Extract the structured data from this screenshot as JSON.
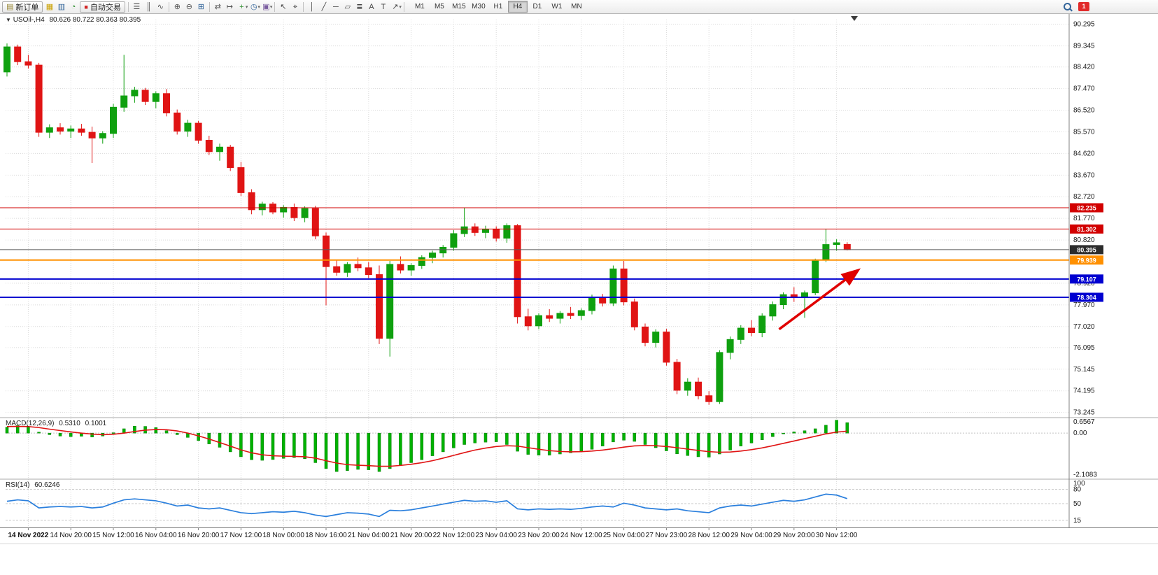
{
  "toolbar": {
    "new_order_label": "新订单",
    "new_order_icon": "▤",
    "autotrading_label": "自动交易",
    "autotrading_icon": "■",
    "notification_badge": "1",
    "icons_a": [
      {
        "name": "market-watch-icon",
        "glyph": "▦",
        "color": "#c9a100"
      },
      {
        "name": "data-window-icon",
        "glyph": "▥",
        "color": "#33659a"
      },
      {
        "name": "navigator-icon",
        "glyph": "◔",
        "color": "#2f8f2f"
      }
    ],
    "icons_b": [
      {
        "sep": true
      },
      {
        "name": "bar-chart-icon",
        "glyph": "☰",
        "color": "#555555"
      },
      {
        "name": "candlestick-chart-icon",
        "glyph": "║",
        "color": "#555555"
      },
      {
        "name": "line-chart-icon",
        "glyph": "∿",
        "color": "#555555"
      },
      {
        "sep": true
      },
      {
        "name": "zoom-in-icon",
        "glyph": "⊕",
        "color": "#555555"
      },
      {
        "name": "zoom-out-icon",
        "glyph": "⊖",
        "color": "#555555"
      },
      {
        "name": "tile-windows-icon",
        "glyph": "⊞",
        "color": "#33659a"
      },
      {
        "sep": true
      },
      {
        "name": "auto-scroll-icon",
        "glyph": "⇄",
        "color": "#555555"
      },
      {
        "name": "chart-shift-icon",
        "glyph": "↦",
        "color": "#555555"
      },
      {
        "name": "new-chart-icon",
        "glyph": "+",
        "color": "#2f8f2f",
        "caret": true
      },
      {
        "name": "periodicity-icon",
        "glyph": "◷",
        "color": "#33659a",
        "caret": true
      },
      {
        "name": "templates-icon",
        "glyph": "▣",
        "color": "#7a5ca0",
        "caret": true
      },
      {
        "sep": true
      },
      {
        "name": "cursor-icon",
        "glyph": "↖",
        "color": "#444444"
      },
      {
        "name": "crosshair-icon",
        "glyph": "⌖",
        "color": "#444444"
      },
      {
        "sep": true
      },
      {
        "name": "vertical-line-icon",
        "glyph": "│",
        "color": "#444444"
      },
      {
        "name": "trendline-icon",
        "glyph": "╱",
        "color": "#444444"
      },
      {
        "name": "horizontal-line-icon",
        "glyph": "─",
        "color": "#444444"
      },
      {
        "name": "equidistant-channel-icon",
        "glyph": "▱",
        "color": "#444444"
      },
      {
        "name": "fibonacci-icon",
        "glyph": "≣",
        "color": "#444444"
      },
      {
        "name": "text-icon",
        "glyph": "A",
        "color": "#444444"
      },
      {
        "name": "text-label-icon",
        "glyph": "T",
        "color": "#444444"
      },
      {
        "name": "arrows-icon",
        "glyph": "↗",
        "color": "#444444",
        "caret": true
      },
      {
        "sep": true
      }
    ],
    "timeframes": {
      "items": [
        "M1",
        "M5",
        "M15",
        "M30",
        "H1",
        "H4",
        "D1",
        "W1",
        "MN"
      ],
      "active": "H4"
    }
  },
  "chart": {
    "symbol_header_icon": "▼",
    "symbol_label": "USOil-,H4",
    "ohlc_label": "80.626 80.722 80.363 80.395",
    "price_axis": [
      "90.295",
      "89.345",
      "88.420",
      "87.470",
      "86.520",
      "85.570",
      "84.620",
      "83.670",
      "82.720",
      "81.770",
      "80.820",
      "78.920",
      "77.970",
      "77.020",
      "76.095",
      "75.145",
      "74.195",
      "73.245"
    ],
    "price_range": {
      "max": 90.5,
      "min": 73.05
    },
    "levels": [
      {
        "price": 82.235,
        "label": "82.235",
        "color": "#d20000",
        "badge_bg": "#d20000",
        "lw": 1
      },
      {
        "price": 81.302,
        "label": "81.302",
        "color": "#d20000",
        "badge_bg": "#d20000",
        "lw": 1
      },
      {
        "price": 80.395,
        "label": "80.395",
        "color": "#5a5a5a",
        "badge_bg": "#2b2b2b",
        "lw": 1
      },
      {
        "price": 79.939,
        "label": "79.939",
        "color": "#ff9000",
        "badge_bg": "#ff9000",
        "lw": 2
      },
      {
        "price": 79.107,
        "label": "79.107",
        "color": "#0000d0",
        "badge_bg": "#0000d0",
        "lw": 2
      },
      {
        "price": 78.304,
        "label": "78.304",
        "color": "#0000d0",
        "badge_bg": "#0000d0",
        "lw": 2
      }
    ],
    "colors": {
      "up": "#0fa00f",
      "down": "#e01414",
      "macd_hist": "#00b200",
      "macd_signal": "#e01414",
      "rsi": "#2a7fdd",
      "grid": "#dadada",
      "arrow": "#e00000"
    }
  },
  "macd": {
    "title": "MACD(12,26,9)",
    "value_main": "0.5310",
    "value_signal": "0.1001",
    "axis": [
      "0.6567",
      "0.00",
      "-2.1083"
    ],
    "range": {
      "max": 0.75,
      "min": -2.3
    }
  },
  "rsi": {
    "title": "RSI(14)",
    "value": "60.6246",
    "axis": [
      "100",
      "80",
      "50",
      "15"
    ],
    "levels": [
      80,
      50,
      15
    ],
    "range": {
      "max": 100,
      "min": 0
    }
  },
  "chart_data": {
    "type": "candlestick",
    "title": "USOil-,H4",
    "ohlc_current": "80.626 80.722 80.363 80.395",
    "ylim": [
      73.245,
      90.295
    ],
    "x_labels": [
      "14 Nov 2022",
      "14 Nov 20:00",
      "15 Nov 12:00",
      "16 Nov 04:00",
      "16 Nov 20:00",
      "17 Nov 12:00",
      "18 Nov 00:00",
      "18 Nov 16:00",
      "21 Nov 04:00",
      "21 Nov 20:00",
      "22 Nov 12:00",
      "23 Nov 04:00",
      "23 Nov 20:00",
      "24 Nov 12:00",
      "25 Nov 04:00",
      "27 Nov 23:00",
      "28 Nov 12:00",
      "29 Nov 04:00",
      "29 Nov 20:00",
      "30 Nov 12:00"
    ],
    "x_label_indices": [
      2,
      6,
      10,
      14,
      18,
      22,
      26,
      30,
      34,
      38,
      42,
      46,
      50,
      54,
      58,
      62,
      66,
      70,
      74,
      78
    ],
    "ohlc": [
      [
        88.2,
        89.45,
        88.0,
        89.3
      ],
      [
        89.3,
        89.4,
        88.5,
        88.65
      ],
      [
        88.65,
        88.95,
        88.35,
        88.5
      ],
      [
        88.5,
        88.6,
        85.35,
        85.55
      ],
      [
        85.55,
        85.9,
        85.3,
        85.75
      ],
      [
        85.75,
        85.95,
        85.45,
        85.6
      ],
      [
        85.6,
        85.85,
        85.3,
        85.7
      ],
      [
        85.7,
        85.92,
        85.4,
        85.55
      ],
      [
        85.55,
        85.8,
        84.2,
        85.3
      ],
      [
        85.3,
        85.6,
        85.05,
        85.5
      ],
      [
        85.5,
        86.8,
        85.3,
        86.65
      ],
      [
        86.65,
        88.95,
        86.45,
        87.15
      ],
      [
        87.15,
        87.55,
        86.85,
        87.4
      ],
      [
        87.4,
        87.5,
        86.75,
        86.9
      ],
      [
        86.9,
        87.35,
        86.6,
        87.25
      ],
      [
        87.25,
        87.45,
        86.25,
        86.4
      ],
      [
        86.4,
        86.55,
        85.45,
        85.6
      ],
      [
        85.6,
        86.1,
        85.35,
        85.95
      ],
      [
        85.95,
        86.05,
        85.05,
        85.2
      ],
      [
        85.2,
        85.4,
        84.55,
        84.7
      ],
      [
        84.7,
        85.05,
        84.3,
        84.9
      ],
      [
        84.9,
        85.0,
        83.85,
        84.0
      ],
      [
        84.0,
        84.25,
        82.75,
        82.9
      ],
      [
        82.9,
        83.05,
        81.95,
        82.15
      ],
      [
        82.15,
        82.5,
        81.9,
        82.4
      ],
      [
        82.4,
        82.48,
        81.95,
        82.05
      ],
      [
        82.05,
        82.35,
        81.8,
        82.25
      ],
      [
        82.25,
        82.42,
        81.65,
        81.8
      ],
      [
        81.8,
        82.3,
        81.6,
        82.2
      ],
      [
        82.2,
        82.32,
        80.85,
        81.0
      ],
      [
        81.0,
        81.15,
        77.95,
        79.65
      ],
      [
        79.65,
        79.95,
        79.25,
        79.4
      ],
      [
        79.4,
        79.85,
        79.2,
        79.75
      ],
      [
        79.75,
        80.05,
        79.45,
        79.6
      ],
      [
        79.6,
        79.85,
        79.15,
        79.3
      ],
      [
        79.3,
        79.7,
        76.25,
        76.5
      ],
      [
        76.5,
        79.9,
        75.7,
        79.75
      ],
      [
        79.75,
        80.1,
        79.35,
        79.5
      ],
      [
        79.5,
        79.8,
        79.25,
        79.7
      ],
      [
        79.7,
        80.15,
        79.55,
        80.05
      ],
      [
        80.05,
        80.35,
        79.8,
        80.25
      ],
      [
        80.25,
        80.6,
        80.05,
        80.5
      ],
      [
        80.5,
        81.25,
        80.35,
        81.1
      ],
      [
        81.1,
        82.25,
        80.95,
        81.4
      ],
      [
        81.4,
        81.55,
        81.0,
        81.15
      ],
      [
        81.15,
        81.45,
        80.9,
        81.3
      ],
      [
        81.3,
        81.42,
        80.75,
        80.9
      ],
      [
        80.9,
        81.55,
        80.7,
        81.45
      ],
      [
        81.45,
        81.52,
        77.15,
        77.45
      ],
      [
        77.45,
        77.8,
        76.85,
        77.05
      ],
      [
        77.05,
        77.6,
        76.9,
        77.5
      ],
      [
        77.5,
        77.78,
        77.22,
        77.38
      ],
      [
        77.38,
        77.7,
        77.15,
        77.6
      ],
      [
        77.6,
        77.88,
        77.35,
        77.5
      ],
      [
        77.5,
        77.82,
        77.3,
        77.72
      ],
      [
        77.72,
        78.42,
        77.55,
        78.3
      ],
      [
        78.3,
        78.45,
        77.9,
        78.05
      ],
      [
        78.05,
        79.7,
        77.92,
        79.55
      ],
      [
        79.55,
        79.9,
        77.95,
        78.1
      ],
      [
        78.1,
        78.25,
        76.85,
        77.0
      ],
      [
        77.0,
        77.15,
        76.15,
        76.32
      ],
      [
        76.32,
        76.9,
        76.1,
        76.78
      ],
      [
        76.78,
        76.92,
        75.3,
        75.45
      ],
      [
        75.45,
        75.6,
        74.05,
        74.22
      ],
      [
        74.22,
        74.75,
        73.98,
        74.58
      ],
      [
        74.58,
        74.78,
        73.82,
        73.98
      ],
      [
        73.98,
        74.18,
        73.58,
        73.72
      ],
      [
        73.72,
        75.98,
        73.62,
        75.88
      ],
      [
        75.88,
        76.58,
        75.58,
        76.45
      ],
      [
        76.45,
        77.08,
        76.25,
        76.95
      ],
      [
        76.95,
        77.3,
        76.6,
        76.75
      ],
      [
        76.75,
        77.6,
        76.55,
        77.48
      ],
      [
        77.48,
        78.12,
        77.28,
        77.98
      ],
      [
        77.98,
        78.52,
        77.78,
        78.42
      ],
      [
        78.42,
        78.75,
        78.1,
        78.3
      ],
      [
        78.3,
        78.6,
        77.4,
        78.5
      ],
      [
        78.5,
        80.0,
        78.4,
        79.95
      ],
      [
        79.95,
        81.3,
        79.85,
        80.62
      ],
      [
        80.62,
        80.85,
        80.35,
        80.7
      ],
      [
        80.626,
        80.722,
        80.363,
        80.395
      ]
    ],
    "macd_histogram": [
      0.3,
      0.38,
      0.33,
      0.05,
      -0.08,
      -0.15,
      -0.18,
      -0.16,
      -0.2,
      -0.15,
      0.02,
      0.22,
      0.35,
      0.34,
      0.28,
      0.12,
      -0.08,
      -0.22,
      -0.38,
      -0.55,
      -0.72,
      -0.95,
      -1.2,
      -1.35,
      -1.38,
      -1.34,
      -1.28,
      -1.24,
      -1.3,
      -1.5,
      -1.8,
      -1.95,
      -1.9,
      -1.84,
      -1.86,
      -1.95,
      -1.8,
      -1.62,
      -1.5,
      -1.35,
      -1.15,
      -0.95,
      -0.75,
      -0.58,
      -0.5,
      -0.46,
      -0.44,
      -0.58,
      -0.92,
      -1.08,
      -1.12,
      -1.12,
      -1.06,
      -1.0,
      -0.93,
      -0.82,
      -0.66,
      -0.45,
      -0.36,
      -0.42,
      -0.58,
      -0.74,
      -0.9,
      -1.05,
      -1.14,
      -1.2,
      -1.22,
      -1.06,
      -0.86,
      -0.66,
      -0.5,
      -0.34,
      -0.18,
      -0.04,
      0.06,
      0.12,
      0.22,
      0.4,
      0.6567,
      0.531
    ],
    "macd_signal": [
      0.33,
      0.34,
      0.33,
      0.28,
      0.2,
      0.13,
      0.06,
      0.0,
      -0.05,
      -0.08,
      -0.06,
      0.0,
      0.08,
      0.15,
      0.18,
      0.17,
      0.11,
      0.0,
      -0.14,
      -0.3,
      -0.48,
      -0.66,
      -0.85,
      -1.0,
      -1.1,
      -1.15,
      -1.17,
      -1.18,
      -1.2,
      -1.27,
      -1.4,
      -1.52,
      -1.6,
      -1.63,
      -1.65,
      -1.68,
      -1.68,
      -1.64,
      -1.58,
      -1.5,
      -1.4,
      -1.27,
      -1.13,
      -0.99,
      -0.86,
      -0.76,
      -0.68,
      -0.64,
      -0.66,
      -0.74,
      -0.82,
      -0.89,
      -0.93,
      -0.95,
      -0.94,
      -0.91,
      -0.86,
      -0.79,
      -0.71,
      -0.65,
      -0.63,
      -0.64,
      -0.68,
      -0.74,
      -0.81,
      -0.88,
      -0.94,
      -0.97,
      -0.96,
      -0.91,
      -0.84,
      -0.75,
      -0.64,
      -0.52,
      -0.4,
      -0.28,
      -0.16,
      -0.04,
      0.05,
      0.1001
    ],
    "rsi": [
      55,
      58,
      56,
      41,
      43,
      44,
      43,
      44,
      41,
      43,
      51,
      58,
      60,
      58,
      56,
      51,
      45,
      47,
      41,
      39,
      41,
      36,
      31,
      29,
      31,
      33,
      32,
      34,
      31,
      26,
      23,
      27,
      31,
      30,
      28,
      23,
      36,
      35,
      37,
      41,
      45,
      49,
      53,
      57,
      55,
      56,
      53,
      56,
      39,
      37,
      39,
      38,
      39,
      38,
      40,
      43,
      45,
      43,
      51,
      47,
      41,
      39,
      37,
      39,
      35,
      33,
      31,
      41,
      45,
      47,
      45,
      49,
      53,
      57,
      55,
      58,
      64,
      70,
      68,
      60.62
    ],
    "arrow": {
      "bar_from": 72.6,
      "price_from": 76.9,
      "bar_to": 79.9,
      "price_to": 79.45
    }
  }
}
